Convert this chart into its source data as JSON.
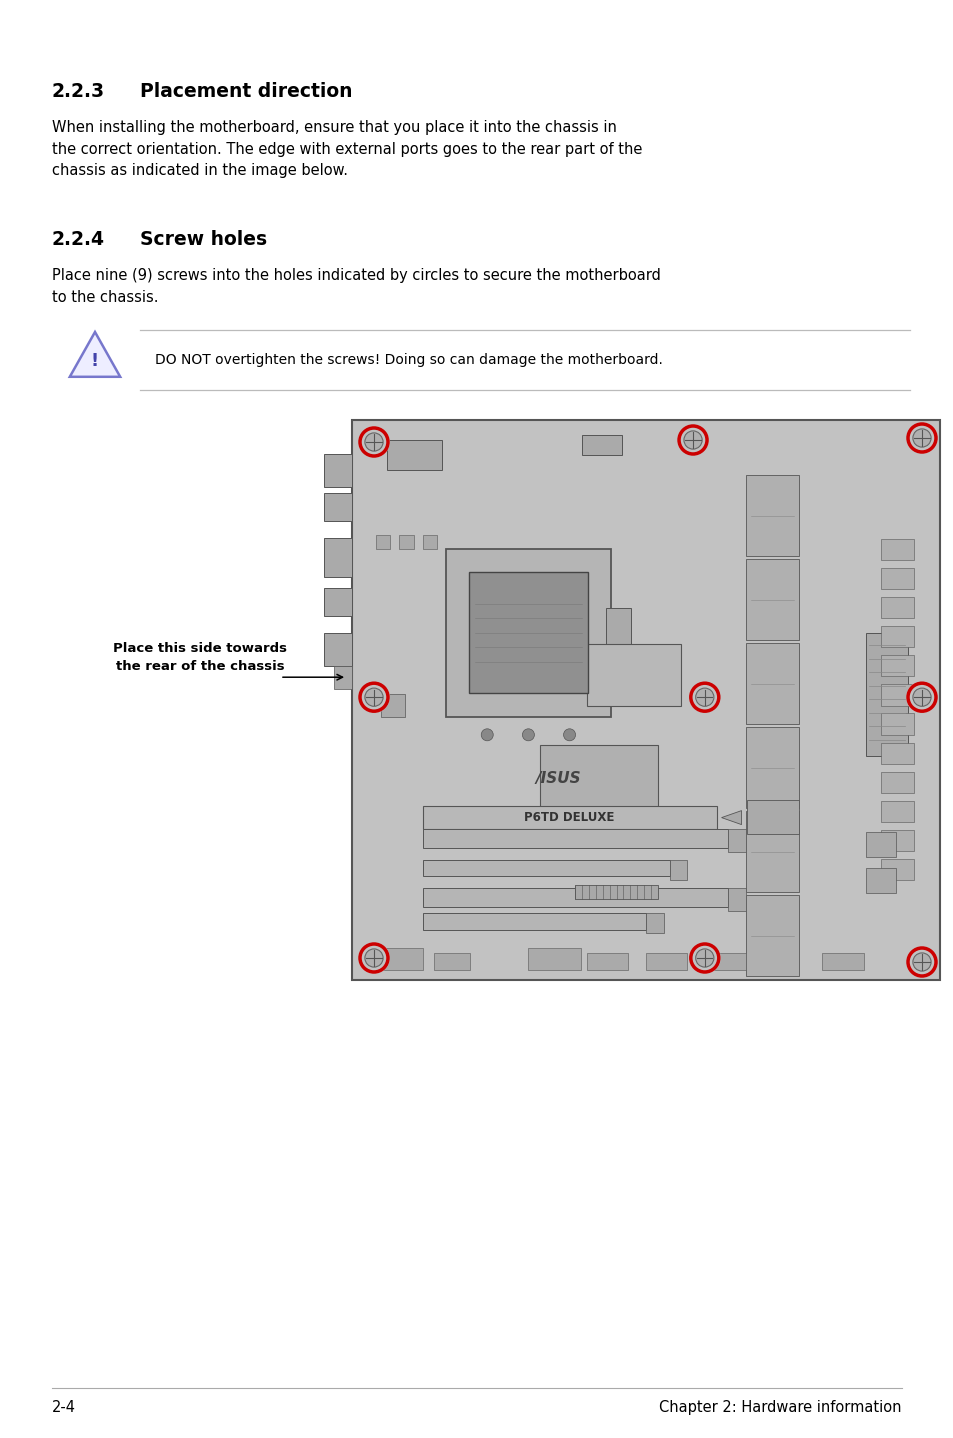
{
  "bg_color": "#ffffff",
  "section1_number": "2.2.3",
  "section1_title": "Placement direction",
  "section1_body": "When installing the motherboard, ensure that you place it into the chassis in\nthe correct orientation. The edge with external ports goes to the rear part of the\nchassis as indicated in the image below.",
  "section2_number": "2.2.4",
  "section2_title": "Screw holes",
  "section2_body": "Place nine (9) screws into the holes indicated by circles to secure the motherboard\nto the chassis.",
  "warning_text": "DO NOT overtighten the screws! Doing so can damage the motherboard.",
  "label_text1": "Place this side towards",
  "label_text2": "the rear of the chassis",
  "footer_left": "2-4",
  "footer_right": "Chapter 2: Hardware information",
  "text_color": "#000000",
  "screw_color": "#cc0000",
  "board_gray": "#c0c0c0",
  "board_dark": "#aaaaaa",
  "board_edge": "#666666"
}
